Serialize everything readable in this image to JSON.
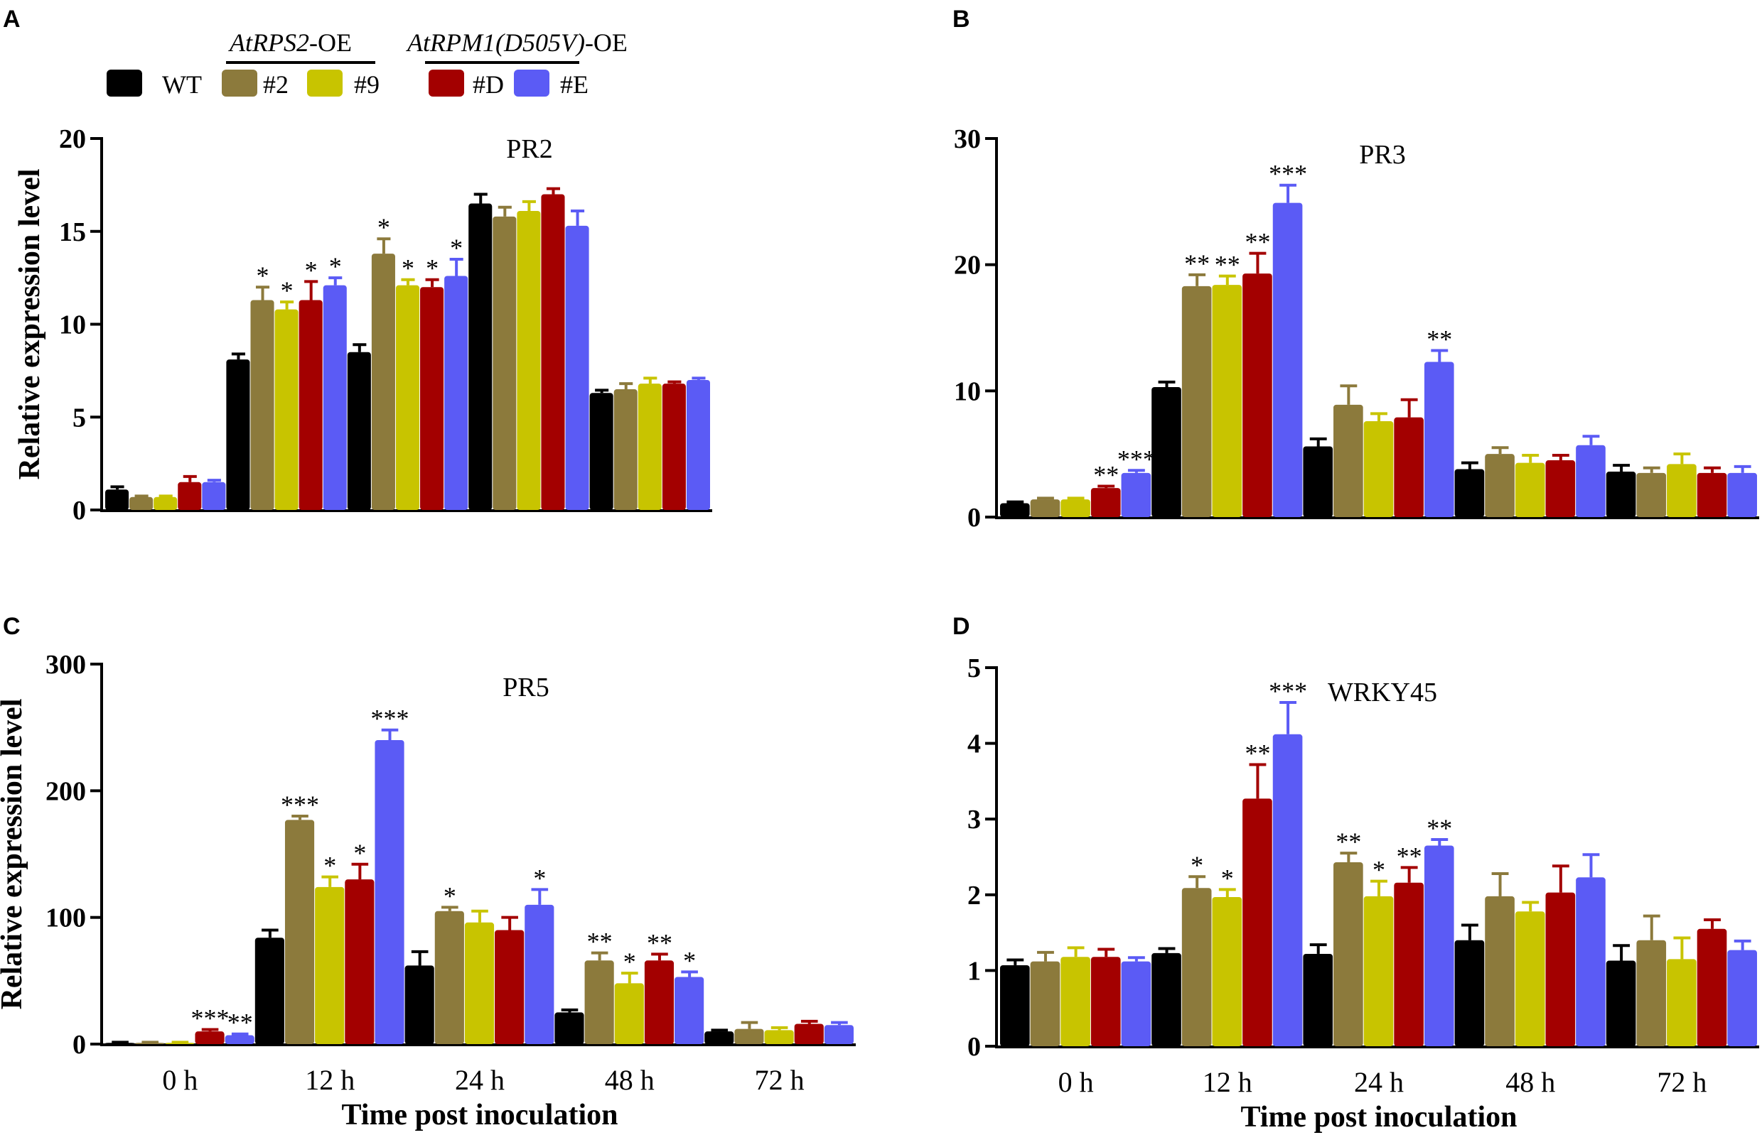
{
  "legend": {
    "group_titles": [
      {
        "italic": "AtRPS2",
        "suffix": "-OE"
      },
      {
        "italic": "AtRPM1(D505V)",
        "suffix": "-OE"
      }
    ],
    "items": [
      {
        "label": "WT",
        "color": "#000000"
      },
      {
        "label": "#2",
        "color": "#8c7a3c"
      },
      {
        "label": "#9",
        "color": "#c8c400"
      },
      {
        "label": "#D",
        "color": "#a30000"
      },
      {
        "label": "#E",
        "color": "#5b5bf5"
      }
    ]
  },
  "shared": {
    "categories": [
      "0 h",
      "12 h",
      "24 h",
      "48 h",
      "72 h"
    ],
    "xlabel": "Time post inoculation",
    "ylabel": "Relative expression level"
  },
  "chart_data": [
    {
      "type": "bar",
      "panel_letter": "A",
      "title": "PR2",
      "ylim": [
        0,
        20
      ],
      "yticks": [
        "0",
        "5",
        "10",
        "15",
        "20"
      ],
      "ytick_values": [
        0,
        5,
        10,
        15,
        20
      ],
      "categories": [
        "0 h",
        "12 h",
        "24 h",
        "48 h",
        "72 h"
      ],
      "series": [
        {
          "name": "WT",
          "values": [
            1.1,
            8.1,
            8.5,
            16.5,
            6.3
          ],
          "errors": [
            0.15,
            0.3,
            0.4,
            0.5,
            0.15
          ],
          "sig": [
            "",
            "",
            "",
            "",
            ""
          ]
        },
        {
          "name": "#2",
          "values": [
            0.7,
            11.3,
            13.8,
            15.8,
            6.5
          ],
          "errors": [
            0.05,
            0.7,
            0.8,
            0.5,
            0.3
          ],
          "sig": [
            "",
            "*",
            "*",
            "",
            ""
          ]
        },
        {
          "name": "#9",
          "values": [
            0.7,
            10.8,
            12.1,
            16.1,
            6.8
          ],
          "errors": [
            0.05,
            0.4,
            0.3,
            0.5,
            0.3
          ],
          "sig": [
            "",
            "*",
            "*",
            "",
            ""
          ]
        },
        {
          "name": "#D",
          "values": [
            1.5,
            11.3,
            12.0,
            17.0,
            6.8
          ],
          "errors": [
            0.3,
            1.0,
            0.4,
            0.3,
            0.1
          ],
          "sig": [
            "",
            "*",
            "*",
            "",
            ""
          ]
        },
        {
          "name": "#E",
          "values": [
            1.5,
            12.1,
            12.6,
            15.3,
            7.0
          ],
          "errors": [
            0.1,
            0.4,
            0.9,
            0.8,
            0.1
          ],
          "sig": [
            "",
            "*",
            "*",
            "",
            ""
          ]
        }
      ]
    },
    {
      "type": "bar",
      "panel_letter": "B",
      "title": "PR3",
      "ylim": [
        0,
        30
      ],
      "yticks": [
        "0",
        "10",
        "20",
        "30"
      ],
      "ytick_values": [
        0,
        10,
        20,
        30
      ],
      "categories": [
        "0 h",
        "12 h",
        "24 h",
        "48 h",
        "72 h"
      ],
      "series": [
        {
          "name": "WT",
          "values": [
            1.1,
            10.3,
            5.6,
            3.8,
            3.6
          ],
          "errors": [
            0.1,
            0.4,
            0.6,
            0.5,
            0.5
          ],
          "sig": [
            "",
            "",
            "",
            "",
            ""
          ]
        },
        {
          "name": "#2",
          "values": [
            1.4,
            18.3,
            8.9,
            5.0,
            3.5
          ],
          "errors": [
            0.1,
            0.9,
            1.5,
            0.5,
            0.4
          ],
          "sig": [
            "",
            "**",
            "",
            "",
            ""
          ]
        },
        {
          "name": "#9",
          "values": [
            1.4,
            18.4,
            7.6,
            4.3,
            4.2
          ],
          "errors": [
            0.1,
            0.7,
            0.6,
            0.6,
            0.8
          ],
          "sig": [
            "",
            "**",
            "",
            "",
            ""
          ]
        },
        {
          "name": "#D",
          "values": [
            2.3,
            19.3,
            7.9,
            4.5,
            3.5
          ],
          "errors": [
            0.15,
            1.6,
            1.4,
            0.4,
            0.4
          ],
          "sig": [
            "**",
            "**",
            "",
            "",
            ""
          ]
        },
        {
          "name": "#E",
          "values": [
            3.5,
            24.9,
            12.3,
            5.7,
            3.5
          ],
          "errors": [
            0.2,
            1.4,
            0.9,
            0.7,
            0.5
          ],
          "sig": [
            "***",
            "***",
            "**",
            "",
            ""
          ]
        }
      ]
    },
    {
      "type": "bar",
      "panel_letter": "C",
      "title": "PR5",
      "ylim": [
        0,
        300
      ],
      "yticks": [
        "0",
        "100",
        "200",
        "300"
      ],
      "ytick_values": [
        0,
        100,
        200,
        300
      ],
      "categories": [
        "0 h",
        "12 h",
        "24 h",
        "48 h",
        "72 h"
      ],
      "series": [
        {
          "name": "WT",
          "values": [
            1,
            84,
            62,
            25,
            10
          ],
          "errors": [
            0.5,
            6,
            11,
            2,
            1
          ],
          "sig": [
            "",
            "",
            "",
            "",
            ""
          ]
        },
        {
          "name": "#2",
          "values": [
            1,
            177,
            105,
            66,
            12
          ],
          "errors": [
            0.5,
            3,
            3,
            6,
            5
          ],
          "sig": [
            "",
            "***",
            "*",
            "**",
            ""
          ]
        },
        {
          "name": "#9",
          "values": [
            1,
            124,
            96,
            48,
            11
          ],
          "errors": [
            0.5,
            8,
            9,
            8,
            2
          ],
          "sig": [
            "",
            "*",
            "",
            "*",
            ""
          ]
        },
        {
          "name": "#D",
          "values": [
            10,
            130,
            90,
            66,
            16
          ],
          "errors": [
            1.5,
            12,
            10,
            5,
            2
          ],
          "sig": [
            "***",
            "*",
            "",
            "**",
            ""
          ]
        },
        {
          "name": "#E",
          "values": [
            7,
            240,
            110,
            53,
            15
          ],
          "errors": [
            1,
            8,
            12,
            4,
            2
          ],
          "sig": [
            "**",
            "***",
            "*",
            "*",
            ""
          ]
        }
      ]
    },
    {
      "type": "bar",
      "panel_letter": "D",
      "title": "WRKY45",
      "ylim": [
        0,
        5
      ],
      "yticks": [
        "0",
        "1",
        "2",
        "3",
        "4",
        "5"
      ],
      "ytick_values": [
        0,
        1,
        2,
        3,
        4,
        5
      ],
      "categories": [
        "0 h",
        "12 h",
        "24 h",
        "48 h",
        "72 h"
      ],
      "series": [
        {
          "name": "WT",
          "values": [
            1.07,
            1.23,
            1.22,
            1.4,
            1.13
          ],
          "errors": [
            0.07,
            0.06,
            0.12,
            0.2,
            0.2
          ],
          "sig": [
            "",
            "",
            "",
            "",
            ""
          ]
        },
        {
          "name": "#2",
          "values": [
            1.12,
            2.09,
            2.43,
            1.98,
            1.4
          ],
          "errors": [
            0.12,
            0.15,
            0.12,
            0.3,
            0.32
          ],
          "sig": [
            "",
            "*",
            "**",
            "",
            ""
          ]
        },
        {
          "name": "#9",
          "values": [
            1.18,
            1.97,
            1.98,
            1.78,
            1.15
          ],
          "errors": [
            0.12,
            0.1,
            0.2,
            0.12,
            0.28
          ],
          "sig": [
            "",
            "*",
            "*",
            "",
            ""
          ]
        },
        {
          "name": "#D",
          "values": [
            1.18,
            3.27,
            2.16,
            2.03,
            1.55
          ],
          "errors": [
            0.1,
            0.45,
            0.2,
            0.35,
            0.12
          ],
          "sig": [
            "",
            "**",
            "**",
            "",
            ""
          ]
        },
        {
          "name": "#E",
          "values": [
            1.12,
            4.12,
            2.65,
            2.23,
            1.27
          ],
          "errors": [
            0.05,
            0.42,
            0.08,
            0.3,
            0.12
          ],
          "sig": [
            "",
            "***",
            "**",
            "",
            ""
          ]
        }
      ]
    }
  ]
}
